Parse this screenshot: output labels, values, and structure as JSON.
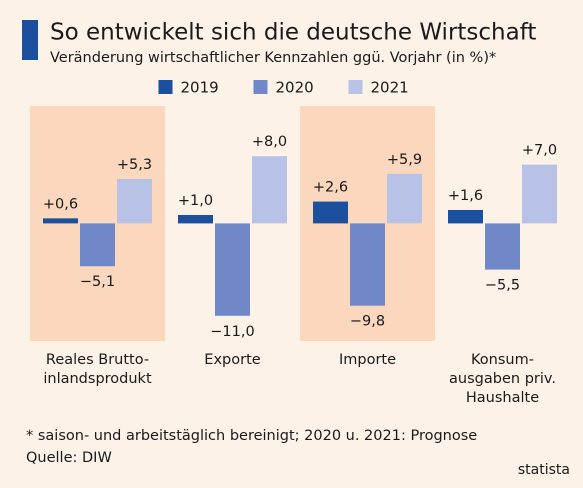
{
  "chart_data": {
    "type": "bar",
    "title": "So entwickelt sich die deutsche Wirtschaft",
    "subtitle": "Veränderung wirtschaftlicher Kennzahlen ggü. Vorjahr (in %)*",
    "categories": [
      "Reales Brutto-\ninlandsprodukt",
      "Exporte",
      "Importe",
      "Konsum-\nausgaben priv.\nHaushalte"
    ],
    "series": [
      {
        "name": "2019",
        "color": "#1d4f9f",
        "values": [
          0.6,
          1.0,
          2.6,
          1.6
        ],
        "value_labels": [
          "+0,6",
          "+1,0",
          "+2,6",
          "+1,6"
        ]
      },
      {
        "name": "2020",
        "color": "#7088c8",
        "values": [
          -5.1,
          -11.0,
          -9.8,
          -5.5
        ],
        "value_labels": [
          "−5,1",
          "−11,0",
          "−9,8",
          "−5,5"
        ]
      },
      {
        "name": "2021",
        "color": "#b8c2e7",
        "values": [
          5.3,
          8.0,
          5.9,
          7.0
        ],
        "value_labels": [
          "+5,3",
          "+8,0",
          "+5,9",
          "+7,0"
        ]
      }
    ],
    "ylim": [
      -14,
      13.5
    ],
    "footnote": "*  saison- und arbeitstäglich bereinigt; 2020 u. 2021: Prognose",
    "source": "Quelle: DIW",
    "brand": "statista"
  }
}
